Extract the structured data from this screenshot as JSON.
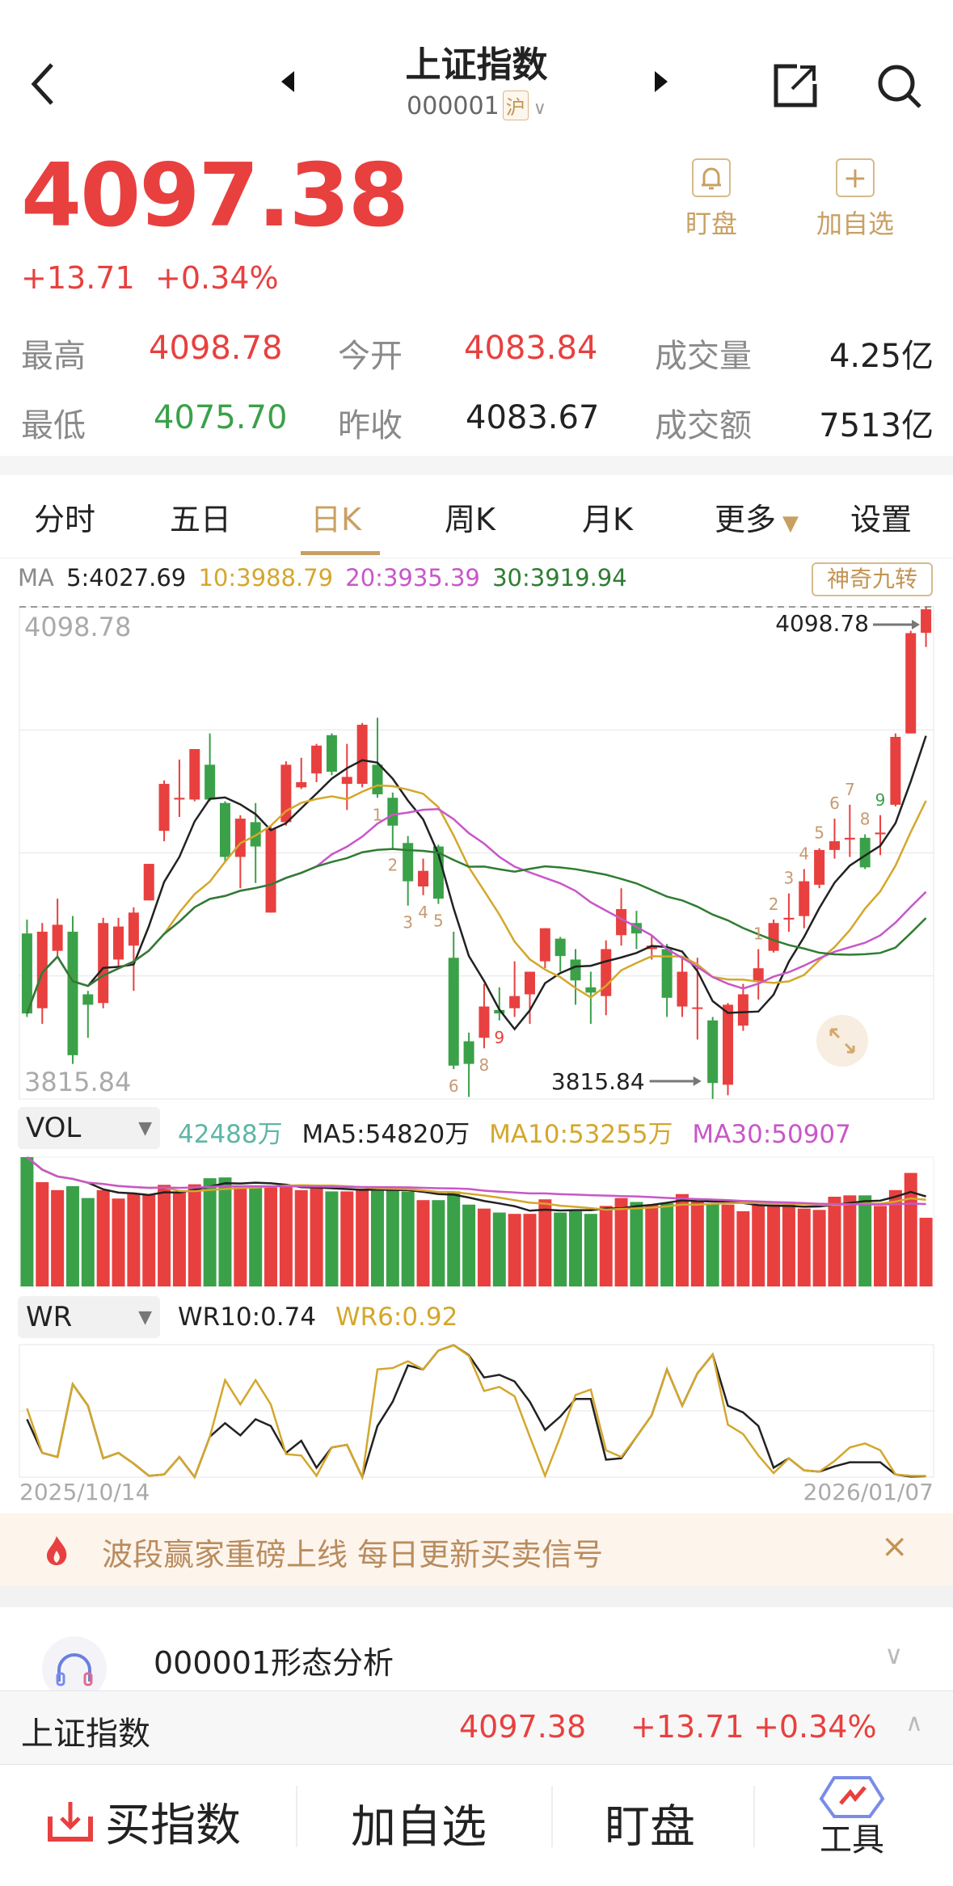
{
  "header": {
    "title": "上证指数",
    "code": "000001",
    "market_badge": "沪",
    "back_icon": "chevron-left-icon",
    "prev_icon": "triangle-left-icon",
    "next_icon": "triangle-right-icon",
    "share_icon": "share-icon",
    "search_icon": "search-icon"
  },
  "quote": {
    "price": "4097.38",
    "change": "+13.71",
    "change_pct": "+0.34%"
  },
  "actions": {
    "watch_label": "盯盘",
    "add_label": "加自选"
  },
  "stats": [
    {
      "label": "最高",
      "value": "4098.78",
      "color": "red"
    },
    {
      "label": "今开",
      "value": "4083.84",
      "color": "red"
    },
    {
      "label": "成交量",
      "value": "4.25亿",
      "color": "dark"
    },
    {
      "label": "最低",
      "value": "4075.70",
      "color": "green"
    },
    {
      "label": "昨收",
      "value": "4083.67",
      "color": "dark"
    },
    {
      "label": "成交额",
      "value": "7513亿",
      "color": "dark"
    }
  ],
  "tabs": [
    {
      "label": "分时"
    },
    {
      "label": "五日"
    },
    {
      "label": "日K",
      "active": true
    },
    {
      "label": "周K"
    },
    {
      "label": "月K"
    },
    {
      "label": "更多"
    },
    {
      "label": "设置"
    }
  ],
  "ma_legend": {
    "prefix": "MA",
    "ma5": "5:4027.69",
    "ma10": "10:3988.79",
    "ma20": "20:3935.39",
    "ma30": "30:3919.94",
    "nine_button": "神奇九转"
  },
  "colors": {
    "up": "#e8403f",
    "down": "#3aa149",
    "ma5": "#222222",
    "ma10": "#d4a72c",
    "ma20": "#c857c8",
    "ma30": "#2e7d32",
    "gold": "#c9a063"
  },
  "vol_legend": {
    "selector": "VOL",
    "current": "42488万",
    "ma5": "MA5:54820万",
    "ma10": "MA10:53255万",
    "ma30": "MA30:50907"
  },
  "wr_legend": {
    "selector": "WR",
    "wr10": "WR10:0.74",
    "wr6": "WR6:0.92"
  },
  "chart_data": [
    {
      "type": "candlestick",
      "ylim": [
        3815.84,
        4098.78
      ],
      "max_label": "4098.78",
      "min_label": "3815.84",
      "max_marker": "4098.78",
      "min_marker": "3815.84",
      "x_start": "2025/10/14",
      "x_end": "2026/01/07",
      "ohlc": [
        [
          3911,
          3919,
          3863,
          3865
        ],
        [
          3868,
          3917,
          3859,
          3912
        ],
        [
          3901,
          3931,
          3898,
          3916
        ],
        [
          3912,
          3921,
          3836,
          3841
        ],
        [
          3876,
          3878,
          3851,
          3870
        ],
        [
          3871,
          3920,
          3868,
          3917
        ],
        [
          3896,
          3920,
          3892,
          3915
        ],
        [
          3904,
          3926,
          3878,
          3923
        ],
        [
          3930,
          3951,
          3930,
          3951
        ],
        [
          3970,
          3999,
          3964,
          3997
        ],
        [
          3988,
          4011,
          3978,
          3989
        ],
        [
          3988,
          4017,
          3987,
          4017
        ],
        [
          4008,
          4026,
          3987,
          3988
        ],
        [
          3986,
          3987,
          3952,
          3955
        ],
        [
          3955,
          3979,
          3937,
          3977
        ],
        [
          3975,
          3986,
          3940,
          3961
        ],
        [
          3923,
          3973,
          3923,
          3971
        ],
        [
          3975,
          4010,
          3973,
          4008
        ],
        [
          3995,
          4012,
          3994,
          3998
        ],
        [
          4003,
          4020,
          3998,
          4019
        ],
        [
          4025,
          4026,
          4002,
          4004
        ],
        [
          3997,
          4020,
          3982,
          4001
        ],
        [
          3997,
          4032,
          3995,
          4031
        ],
        [
          4008,
          4035,
          3989,
          3991
        ],
        [
          3989,
          3992,
          3960,
          3973
        ],
        [
          3963,
          3967,
          3927,
          3941
        ],
        [
          3938,
          3954,
          3933,
          3947
        ],
        [
          3961,
          3962,
          3928,
          3931
        ],
        [
          3897,
          3912,
          3833,
          3835
        ],
        [
          3849,
          3854,
          3817,
          3836
        ],
        [
          3851,
          3882,
          3845,
          3869
        ],
        [
          3867,
          3880,
          3861,
          3865
        ],
        [
          3868,
          3895,
          3863,
          3875
        ],
        [
          3876,
          3889,
          3859,
          3889
        ],
        [
          3895,
          3914,
          3891,
          3914
        ],
        [
          3908,
          3909,
          3889,
          3898
        ],
        [
          3896,
          3902,
          3870,
          3884
        ],
        [
          3880,
          3889,
          3859,
          3877
        ],
        [
          3875,
          3907,
          3864,
          3902
        ],
        [
          3910,
          3937,
          3904,
          3925
        ],
        [
          3917,
          3924,
          3902,
          3911
        ],
        [
          3902,
          3910,
          3896,
          3904
        ],
        [
          3902,
          3905,
          3863,
          3874
        ],
        [
          3869,
          3897,
          3863,
          3889
        ],
        [
          3868,
          3897,
          3850,
          3868.5
        ],
        [
          3861,
          3863,
          3815.84,
          3825
        ],
        [
          3824,
          3871,
          3818,
          3870
        ],
        [
          3858,
          3882,
          3855,
          3876
        ],
        [
          3883,
          3902,
          3873,
          3891
        ],
        [
          3901,
          3919,
          3900,
          3917
        ],
        [
          3919,
          3934,
          3912,
          3920
        ],
        [
          3921,
          3948,
          3914,
          3941
        ],
        [
          3939,
          3960,
          3937,
          3959
        ],
        [
          3959,
          3977,
          3954,
          3964
        ],
        [
          3965,
          3985,
          3955,
          3966
        ],
        [
          3966,
          3968,
          3948,
          3949
        ],
        [
          3968,
          3979,
          3956,
          3969
        ],
        [
          3985,
          4026,
          3984,
          4024
        ],
        [
          4026,
          4085,
          4026,
          4083.67
        ],
        [
          4083.84,
          4098.78,
          4075.7,
          4097.38
        ]
      ],
      "nine_turn": [
        [
          23,
          "1"
        ],
        [
          24,
          "2"
        ],
        [
          25,
          "3"
        ],
        [
          26,
          "4"
        ],
        [
          27,
          "5"
        ],
        [
          28,
          "6"
        ],
        [
          29,
          "7"
        ],
        [
          30,
          "8"
        ],
        [
          31,
          "9"
        ],
        [
          48,
          "1"
        ],
        [
          49,
          "2"
        ],
        [
          50,
          "3"
        ],
        [
          51,
          "4"
        ],
        [
          52,
          "5"
        ],
        [
          53,
          "6"
        ],
        [
          54,
          "7"
        ],
        [
          55,
          "8"
        ],
        [
          56,
          "9"
        ]
      ]
    },
    {
      "type": "bar",
      "unit": "万",
      "values": [
        80000,
        64500,
        59600,
        62050,
        54700,
        59600,
        54380,
        57150,
        57150,
        62870,
        58790,
        63200,
        66950,
        67440,
        62050,
        61240,
        61240,
        62870,
        59600,
        61240,
        58790,
        58790,
        60420,
        60420,
        59600,
        58790,
        53400,
        53400,
        58790,
        50620,
        48170,
        45720,
        44900,
        44900,
        53890,
        45720,
        46540,
        44900,
        49800,
        54700,
        52250,
        50620,
        51440,
        57150,
        52250,
        51440,
        50620,
        46540,
        50620,
        50620,
        50620,
        48170,
        47350,
        55520,
        56340,
        56340,
        49800,
        59600,
        70220,
        42488
      ]
    },
    {
      "type": "line",
      "ylim": [
        0,
        100
      ],
      "series": [
        {
          "name": "WR10",
          "values": [
            43.7,
            18.3,
            15.2,
            70.1,
            53.9,
            14.2,
            18.3,
            10.2,
            1.0,
            2.0,
            15.2,
            0,
            30.5,
            40.7,
            31.5,
            43.7,
            38.6,
            18.3,
            27.4,
            7.1,
            22.4,
            24.4,
            0,
            38.6,
            56.9,
            84.3,
            81.3,
            95.5,
            99.6,
            92,
            75.2,
            77.2,
            72.2,
            56.9,
            35.6,
            45.7,
            59.0,
            59.0,
            13.2,
            14.2,
            30.5,
            46.7,
            81.3,
            53.9,
            78.3,
            92.5,
            53.9,
            48.8,
            38.6,
            7.1,
            14.2,
            5.1,
            4.1,
            8.1,
            11.2,
            11.2,
            11.2,
            2.0,
            0.4,
            0.74
          ]
        },
        {
          "name": "WR6",
          "values": [
            51.8,
            18.3,
            15.2,
            70.1,
            53.9,
            14.2,
            18.3,
            10.2,
            1.0,
            2.0,
            15.2,
            0,
            30.5,
            73.2,
            54.9,
            73.2,
            54.9,
            17.3,
            16.3,
            1.0,
            22.4,
            24.4,
            0,
            81.3,
            82.3,
            87.4,
            81.3,
            95.5,
            99.6,
            91.5,
            65.0,
            68.1,
            61.0,
            30.5,
            1.0,
            30.5,
            62.0,
            66.1,
            20.3,
            15.2,
            30.5,
            46.7,
            81.3,
            53.9,
            78.3,
            92.5,
            39.6,
            32.5,
            16.3,
            3.0,
            14.2,
            5.1,
            4.1,
            12.2,
            22.4,
            25.4,
            20.3,
            2.0,
            1.0,
            0.92
          ]
        }
      ]
    }
  ],
  "banner": {
    "text": "波段赢家重磅上线 每日更新买卖信号",
    "icon": "flame-icon",
    "close": "×"
  },
  "analysis": {
    "title": "000001形态分析",
    "icon": "headphones-icon"
  },
  "sticky": {
    "name": "上证指数",
    "price": "4097.38",
    "change": "+13.71",
    "change_pct": "+0.34%"
  },
  "bottom_bar": {
    "buy": "买指数",
    "add": "加自选",
    "watch": "盯盘",
    "tools": "工具"
  }
}
